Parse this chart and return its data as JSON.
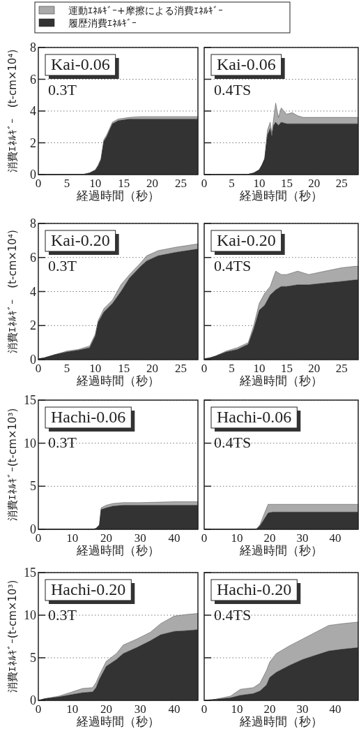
{
  "chart_data": [
    {
      "type": "area",
      "stacked": true,
      "title": "Kai-0.06",
      "subtitle": "0.3T",
      "xlabel": "経過時間（秒）",
      "ylabel": "消費ｴﾈﾙｷﾞｰ　(t-cm×10⁴)",
      "xlim": [
        0,
        28
      ],
      "xticks": [
        0,
        5,
        10,
        15,
        20,
        25
      ],
      "ylim": [
        0,
        8
      ],
      "yticks": [
        0,
        2,
        4,
        6,
        8
      ],
      "grid": "y",
      "legend": "top",
      "x": [
        0,
        8,
        9,
        10,
        10.5,
        11,
        11.5,
        12,
        12.5,
        13,
        13.5,
        14,
        15,
        16,
        18,
        20,
        24,
        28
      ],
      "series": [
        {
          "name": "履歴消費ｴﾈﾙｷﾞｰ",
          "color": "#333333",
          "values": [
            0,
            0.02,
            0.1,
            0.28,
            0.55,
            0.95,
            2.1,
            2.4,
            2.8,
            3.2,
            3.3,
            3.4,
            3.45,
            3.5,
            3.5,
            3.5,
            3.5,
            3.5
          ]
        },
        {
          "name": "運動ｴﾈﾙｷﾞｰ+摩擦による消費ｴﾈﾙｷﾞｰ",
          "color": "#aaaaaa",
          "values": [
            0,
            0,
            0,
            0.02,
            0.05,
            0.05,
            0.1,
            0.1,
            0.1,
            0.1,
            0.1,
            0.1,
            0.1,
            0.1,
            0.15,
            0.15,
            0.15,
            0.15
          ]
        }
      ]
    },
    {
      "type": "area",
      "stacked": true,
      "title": "Kai-0.06",
      "subtitle": "0.4TS",
      "xlabel": "経過時間（秒）",
      "xlim": [
        0,
        28
      ],
      "xticks": [
        0,
        5,
        10,
        15,
        20,
        25
      ],
      "ylim": [
        0,
        8
      ],
      "yticks": [
        0,
        2,
        4,
        6,
        8
      ],
      "grid": "y",
      "tick_labels": "x",
      "x": [
        0,
        8,
        9,
        10,
        10.5,
        11,
        11.5,
        12,
        12.3,
        12.6,
        13,
        13.5,
        14,
        15,
        16,
        17,
        18,
        20,
        24,
        28
      ],
      "series": [
        {
          "color": "#333333",
          "values": [
            0,
            0.02,
            0.1,
            0.3,
            0.6,
            1.0,
            2.5,
            2.9,
            2.4,
            3.1,
            3.3,
            3.1,
            3.3,
            3.2,
            3.2,
            3.2,
            3.2,
            3.2,
            3.2,
            3.2
          ]
        },
        {
          "color": "#aaaaaa",
          "values": [
            0,
            0,
            0,
            0,
            0,
            0,
            0.3,
            0.4,
            0.2,
            0.4,
            1.2,
            0.5,
            0.9,
            0.6,
            0.7,
            0.5,
            0.4,
            0.4,
            0.4,
            0.4
          ]
        }
      ]
    },
    {
      "type": "area",
      "stacked": true,
      "title": "Kai-0.20",
      "subtitle": "0.3T",
      "xlabel": "経過時間（秒）",
      "ylabel": "消費ｴﾈﾙｷﾞｰ　(t-cm×10⁴)",
      "xlim": [
        0,
        28
      ],
      "xticks": [
        0,
        5,
        10,
        15,
        20,
        25
      ],
      "ylim": [
        0,
        8
      ],
      "yticks": [
        0,
        2,
        4,
        6,
        8
      ],
      "grid": "y",
      "x": [
        0,
        1,
        3,
        5,
        7,
        9,
        10,
        10.5,
        11.5,
        13,
        14.5,
        16,
        18,
        19,
        21,
        24,
        28
      ],
      "series": [
        {
          "color": "#333333",
          "values": [
            0.05,
            0.1,
            0.3,
            0.45,
            0.55,
            0.7,
            1.4,
            2.2,
            2.8,
            3.3,
            4.0,
            4.8,
            5.5,
            5.8,
            6.1,
            6.3,
            6.5
          ]
        },
        {
          "color": "#aaaaaa",
          "values": [
            0,
            0,
            0,
            0.05,
            0.05,
            0.1,
            0.1,
            0.1,
            0.2,
            0.2,
            0.4,
            0.2,
            0.2,
            0.3,
            0.3,
            0.3,
            0.3
          ]
        }
      ]
    },
    {
      "type": "area",
      "stacked": true,
      "title": "Kai-0.20",
      "subtitle": "0.4TS",
      "xlabel": "経過時間（秒）",
      "xlim": [
        0,
        28
      ],
      "xticks": [
        0,
        5,
        10,
        15,
        20,
        25
      ],
      "ylim": [
        0,
        8
      ],
      "yticks": [
        0,
        2,
        4,
        6,
        8
      ],
      "grid": "y",
      "tick_labels": "x",
      "x": [
        0,
        1,
        2,
        4,
        6,
        8,
        9,
        10,
        11,
        12,
        13,
        14,
        15,
        17,
        19,
        22,
        25,
        28
      ],
      "series": [
        {
          "color": "#333333",
          "values": [
            0.05,
            0.1,
            0.2,
            0.45,
            0.6,
            0.9,
            1.8,
            2.9,
            3.2,
            3.8,
            4.1,
            4.3,
            4.3,
            4.4,
            4.4,
            4.5,
            4.6,
            4.7
          ]
        },
        {
          "color": "#aaaaaa",
          "values": [
            0,
            0,
            0,
            0.05,
            0.1,
            0.1,
            0.2,
            0.4,
            0.7,
            0.5,
            1.1,
            0.7,
            0.7,
            0.8,
            0.6,
            0.7,
            0.8,
            0.8
          ]
        }
      ]
    },
    {
      "type": "area",
      "stacked": true,
      "title": "Hachi-0.06",
      "subtitle": "0.3T",
      "xlabel": "経過時間（秒）",
      "ylabel": "消費ｴﾈﾙｷﾞｰ(t-cm×10³)",
      "xlim": [
        0,
        47
      ],
      "xticks": [
        0,
        10,
        20,
        30,
        40
      ],
      "ylim": [
        0,
        15
      ],
      "yticks": [
        0,
        5,
        10,
        15
      ],
      "grid": "y",
      "x": [
        0,
        16,
        17,
        18,
        18.5,
        20,
        22,
        25,
        30,
        40,
        47
      ],
      "series": [
        {
          "color": "#333333",
          "values": [
            0,
            0,
            0.1,
            0.5,
            2.3,
            2.5,
            2.7,
            2.8,
            2.8,
            2.8,
            2.8
          ]
        },
        {
          "color": "#aaaaaa",
          "values": [
            0,
            0,
            0,
            0,
            0.2,
            0.3,
            0.3,
            0.3,
            0.3,
            0.4,
            0.4
          ]
        }
      ]
    },
    {
      "type": "area",
      "stacked": true,
      "title": "Hachi-0.06",
      "subtitle": "0.4TS",
      "xlabel": "経過時間（秒）",
      "xlim": [
        0,
        47
      ],
      "xticks": [
        0,
        10,
        20,
        30,
        40
      ],
      "ylim": [
        0,
        15
      ],
      "yticks": [
        0,
        5,
        10,
        15
      ],
      "grid": "y",
      "tick_labels": "x",
      "x": [
        0,
        15,
        16,
        17,
        18,
        19.5,
        21,
        25,
        30,
        40,
        47
      ],
      "series": [
        {
          "color": "#333333",
          "values": [
            0,
            0,
            0.05,
            0.4,
            1.0,
            1.9,
            2.0,
            2.0,
            2.0,
            2.0,
            2.0
          ]
        },
        {
          "color": "#aaaaaa",
          "values": [
            0,
            0,
            0,
            0.1,
            0.5,
            1.0,
            0.9,
            0.9,
            0.9,
            0.9,
            0.9
          ]
        }
      ]
    },
    {
      "type": "area",
      "stacked": true,
      "title": "Hachi-0.20",
      "subtitle": "0.3T",
      "xlabel": "経過時間（秒）",
      "ylabel": "消費ｴﾈﾙｷﾞｰ(t-cm×10³)",
      "xlim": [
        0,
        47
      ],
      "xticks": [
        0,
        10,
        20,
        30,
        40
      ],
      "ylim": [
        0,
        15
      ],
      "yticks": [
        0,
        5,
        10,
        15
      ],
      "grid": "y",
      "x": [
        0,
        2,
        6,
        10,
        13,
        16,
        17,
        18,
        20,
        23,
        25,
        29,
        33,
        36,
        40,
        44,
        47
      ],
      "series": [
        {
          "color": "#333333",
          "values": [
            0,
            0.2,
            0.4,
            0.7,
            0.9,
            1.0,
            1.5,
            2.5,
            4.0,
            4.8,
            5.5,
            6.2,
            7.0,
            7.7,
            8.1,
            8.2,
            8.3
          ]
        },
        {
          "color": "#aaaaaa",
          "values": [
            0,
            0,
            0.1,
            0.3,
            0.5,
            0.5,
            0.6,
            0.5,
            0.6,
            0.7,
            1.0,
            1.0,
            1.0,
            1.3,
            1.8,
            1.9,
            1.9
          ]
        }
      ]
    },
    {
      "type": "area",
      "stacked": true,
      "title": "Hachi-0.20",
      "subtitle": "0.4TS",
      "xlabel": "経過時間（秒）",
      "xlim": [
        0,
        47
      ],
      "xticks": [
        0,
        10,
        20,
        30,
        40
      ],
      "ylim": [
        0,
        15
      ],
      "yticks": [
        0,
        5,
        10,
        15
      ],
      "grid": "y",
      "tick_labels": "x",
      "x": [
        0,
        3,
        8,
        11,
        15,
        17,
        19,
        20,
        22,
        26,
        30,
        34,
        38,
        42,
        47
      ],
      "series": [
        {
          "color": "#333333",
          "values": [
            0,
            0.1,
            0.3,
            0.6,
            0.8,
            1.1,
            1.8,
            2.7,
            3.3,
            4.1,
            4.8,
            5.3,
            5.8,
            6.0,
            6.2
          ]
        },
        {
          "color": "#aaaaaa",
          "values": [
            0,
            0,
            0.2,
            0.7,
            0.7,
            0.9,
            1.7,
            1.8,
            2.2,
            2.3,
            2.4,
            2.7,
            3.0,
            3.0,
            3.0
          ]
        }
      ]
    }
  ]
}
